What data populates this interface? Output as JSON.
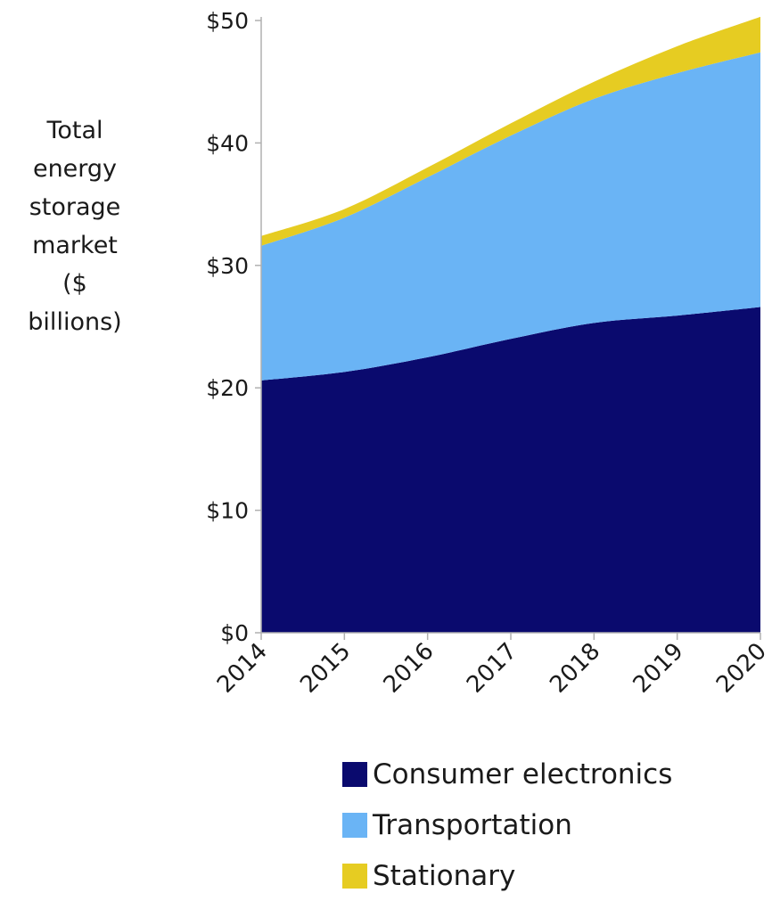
{
  "chart_data": {
    "type": "area",
    "stacked": true,
    "ylabel": "Total energy storage market ($ billions)",
    "ylabel_lines": [
      "Total",
      "energy",
      "storage",
      "market",
      "($",
      "billions)"
    ],
    "x": [
      "2014",
      "2015",
      "2016",
      "2017",
      "2018",
      "2019",
      "2020"
    ],
    "ylim": [
      0,
      50
    ],
    "yticks": [
      0,
      10,
      20,
      30,
      40,
      50
    ],
    "ytick_labels": [
      "$0",
      "$10",
      "$20",
      "$30",
      "$40",
      "$50"
    ],
    "series": [
      {
        "name": "Consumer electronics",
        "color": "#0a0a6e",
        "values": [
          20.6,
          21.3,
          22.5,
          24.0,
          25.3,
          25.9,
          26.6
        ]
      },
      {
        "name": "Transportation",
        "color": "#6ab4f5",
        "values": [
          11.0,
          12.6,
          14.7,
          16.6,
          18.3,
          19.8,
          20.8
        ]
      },
      {
        "name": "Stationary",
        "color": "#e6cc22",
        "values": [
          0.8,
          0.7,
          0.8,
          1.0,
          1.4,
          2.2,
          2.9
        ]
      }
    ],
    "grid": false,
    "legend_position": "bottom"
  }
}
